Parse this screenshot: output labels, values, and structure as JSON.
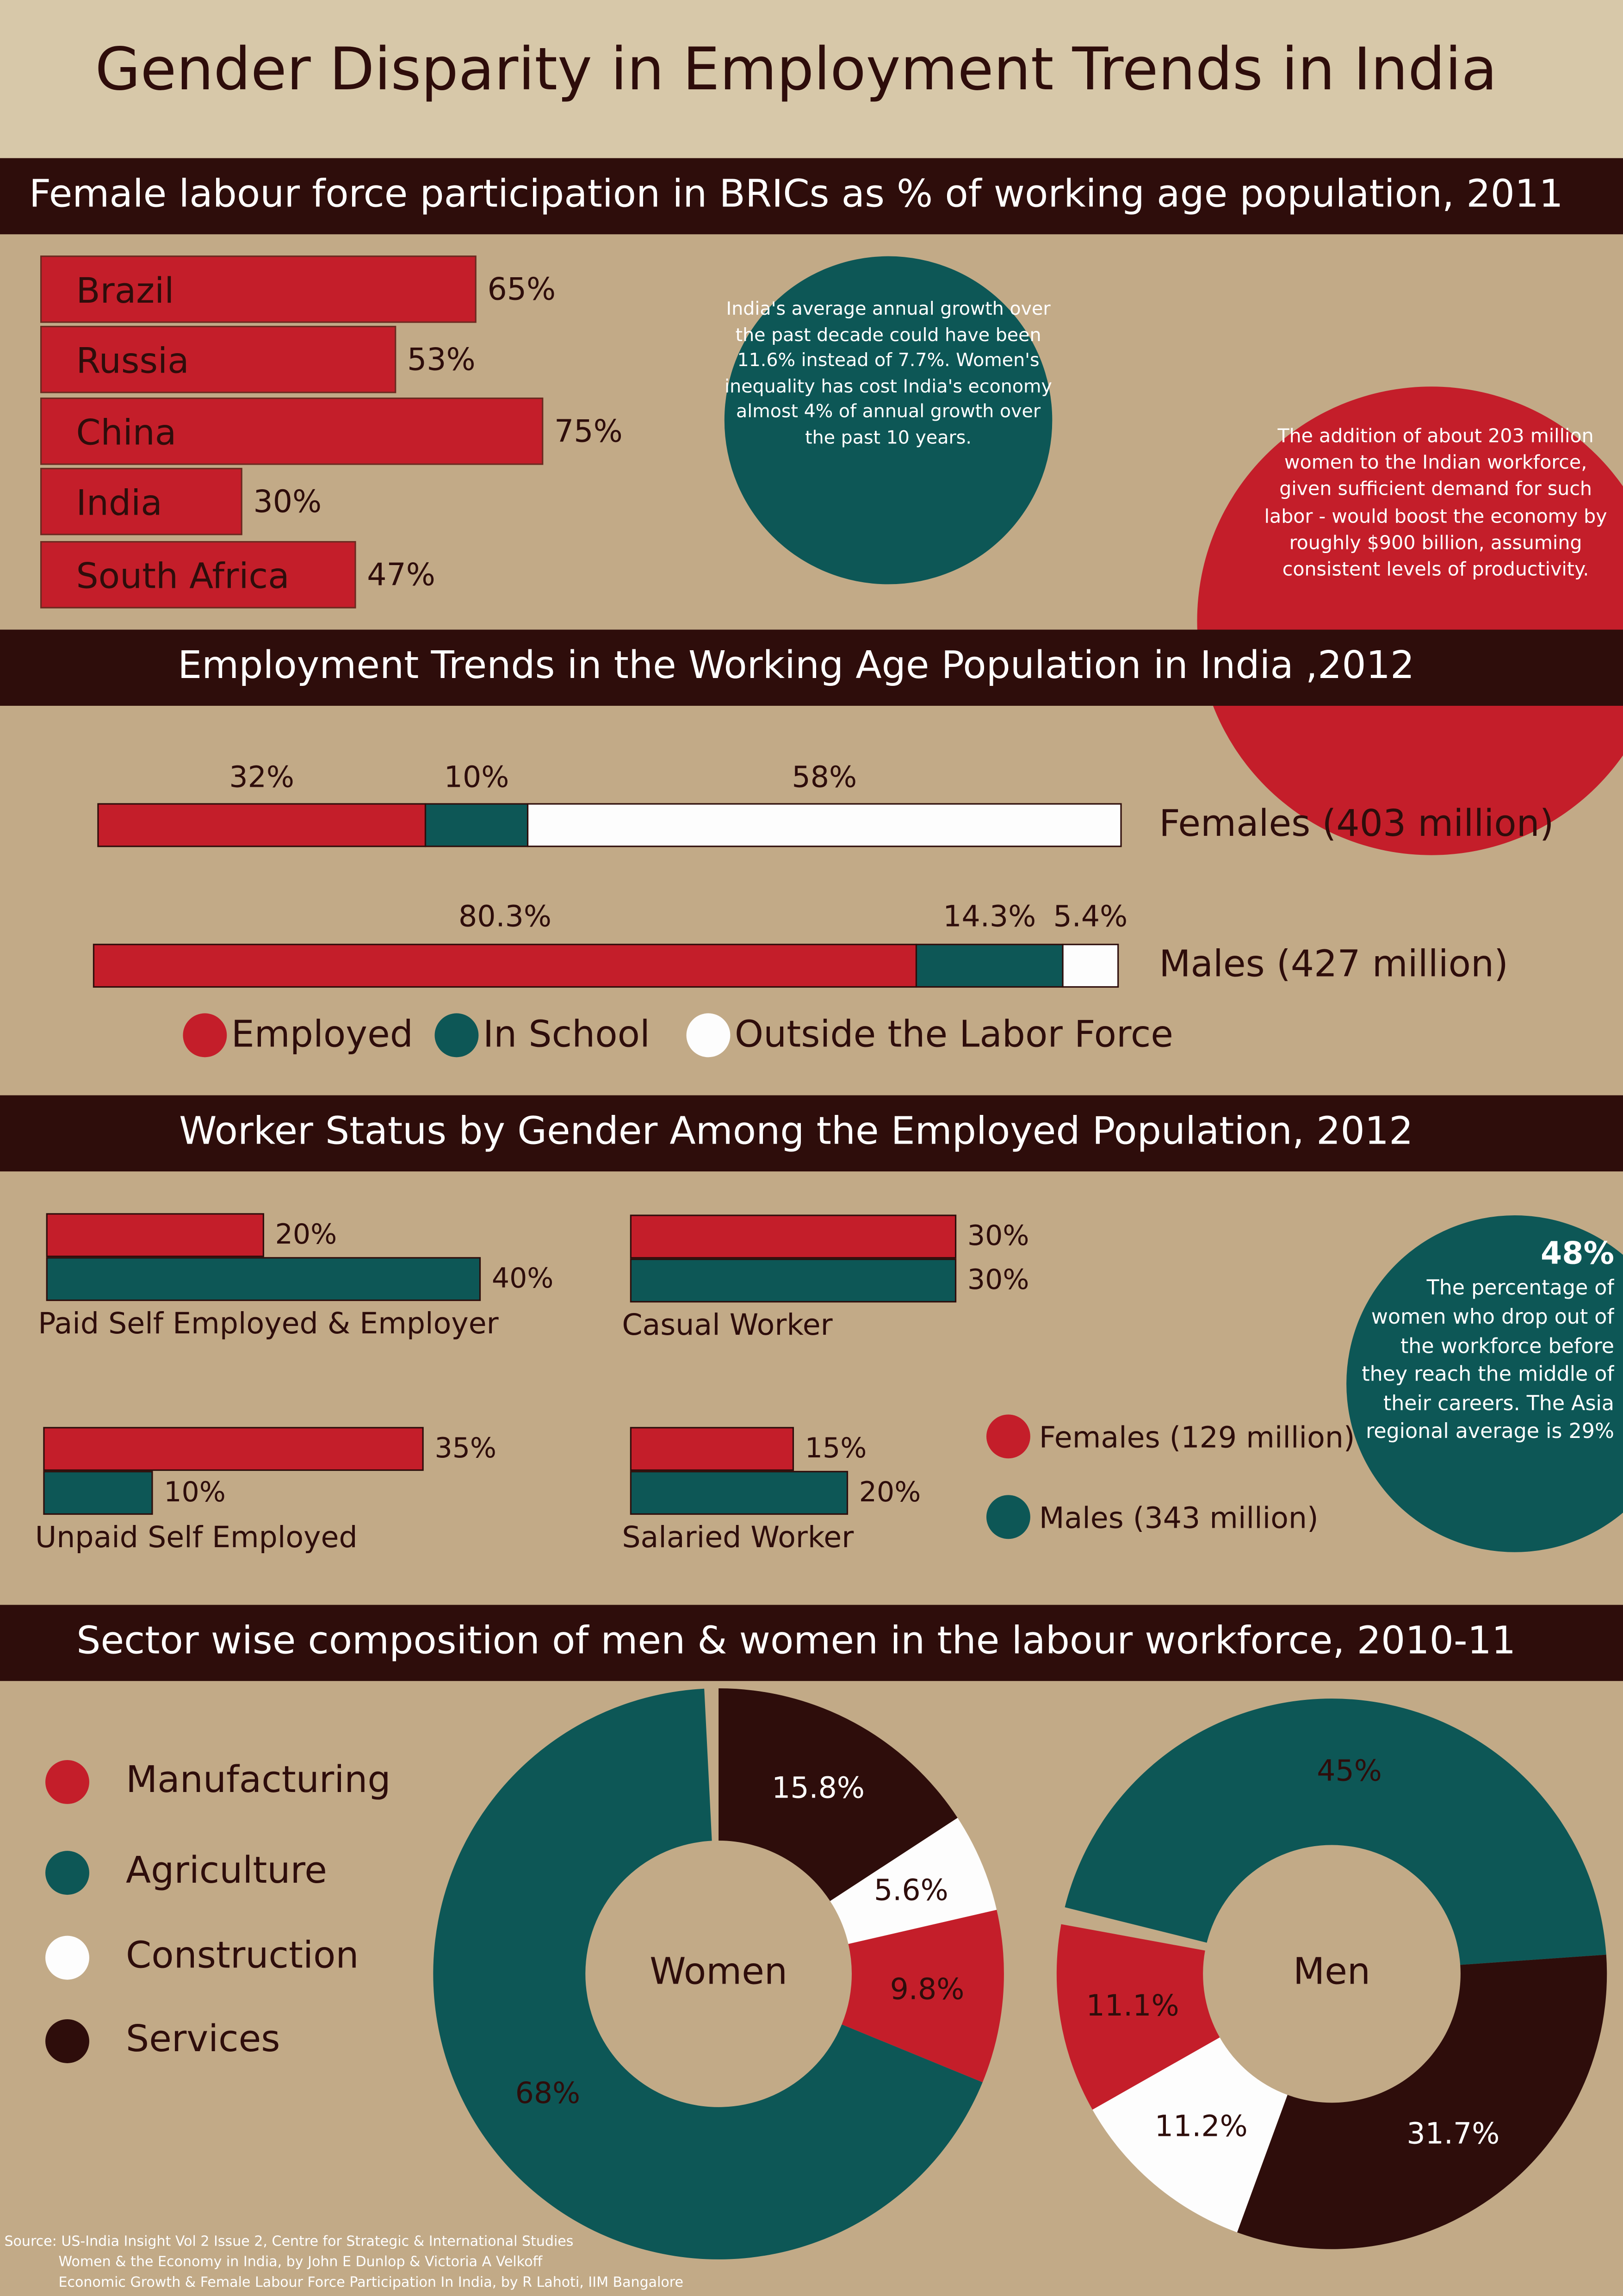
{
  "title": "Gender Disparity in Employment Trends in India",
  "chart_data": [
    {
      "type": "bar",
      "title": "Female labour force participation in BRICs as % of working age population, 2011",
      "categories": [
        "Brazil",
        "Russia",
        "China",
        "India",
        "South Africa"
      ],
      "values": [
        65,
        53,
        75,
        30,
        47
      ],
      "value_labels": [
        "65%",
        "53%",
        "75%",
        "30%",
        "47%"
      ],
      "color": "#c41e2a"
    },
    {
      "type": "stacked_bar",
      "title": "Employment Trends in the Working Age Population in India ,2012",
      "categories": [
        "Females (403 million)",
        "Males (427 million)"
      ],
      "series": [
        {
          "name": "Employed",
          "color": "#c41e2a",
          "values": [
            32,
            80.3
          ],
          "value_labels": [
            "32%",
            "80.3%"
          ]
        },
        {
          "name": "In School",
          "color": "#0d5756",
          "values": [
            10,
            14.3
          ],
          "value_labels": [
            "10%",
            "14.3%"
          ]
        },
        {
          "name": "Outside the Labor Force",
          "color": "#fdfdfd",
          "values": [
            58,
            5.4
          ],
          "value_labels": [
            "58%",
            "5.4%"
          ]
        }
      ]
    },
    {
      "type": "grouped_bar",
      "title": "Worker Status by Gender Among the Employed Population, 2012",
      "categories": [
        "Paid Self Employed & Employer",
        "Casual Worker",
        "Unpaid Self Employed",
        "Salaried Worker"
      ],
      "series": [
        {
          "name": "Females (129 million)",
          "color": "#c41e2a",
          "values": [
            20,
            30,
            35,
            15
          ],
          "value_labels": [
            "20%",
            "30%",
            "35%",
            "15%"
          ]
        },
        {
          "name": "Males (343 million)",
          "color": "#0d5756",
          "values": [
            40,
            30,
            10,
            20
          ],
          "value_labels": [
            "40%",
            "30%",
            "10%",
            "20%"
          ]
        }
      ]
    },
    {
      "type": "donut",
      "title": "Sector wise composition of men & women in the labour workforce, 2010-11",
      "categories": [
        "Manufacturing",
        "Agriculture",
        "Construction",
        "Services"
      ],
      "colors": [
        "#c41e2a",
        "#0d5756",
        "#fdfdfd",
        "#2e0d0b"
      ],
      "series": [
        {
          "name": "Women",
          "values": [
            9.8,
            68,
            5.6,
            15.8
          ],
          "value_labels": [
            "9.8%",
            "68%",
            "5.6%",
            "15.8%"
          ]
        },
        {
          "name": "Men",
          "values": [
            11.1,
            45,
            11.2,
            31.7
          ],
          "value_labels": [
            "11.1%",
            "45%",
            "11.2%",
            "31.7%"
          ]
        }
      ]
    }
  ],
  "callouts": [
    {
      "text": "India's average annual growth over the past decade could have been 11.6% instead of 7.7%. Women's inequality has cost India's economy almost 4% of annual growth over the past 10 years."
    },
    {
      "text": "The addition of about 203 million women to the Indian workforce, given sufficient demand for such labor - would boost the economy by roughly $900 billion, assuming consistent levels of productivity."
    },
    {
      "headline": "48%",
      "text": "The percentage of women who drop out of the workforce before they reach the middle of their careers. The Asia regional average is 29%"
    }
  ],
  "source": [
    "Source: US-India Insight Vol 2 Issue 2, Centre for Strategic & International Studies",
    "Women & the Economy in India, by John E Dunlop & Victoria A Velkoff",
    "Economic Growth & Female Labour Force Participation In India, by R Lahoti, IIM Bangalore"
  ]
}
